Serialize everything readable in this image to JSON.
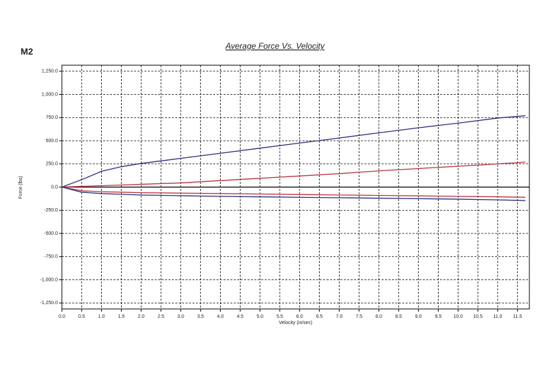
{
  "label": "M2",
  "chart_data": {
    "type": "line",
    "title": "Average Force Vs. Velocity",
    "x_label": "Velocity (in/sec)",
    "y_label": "Force (lbs)",
    "x": [
      0,
      0.5,
      1,
      1.5,
      2,
      3,
      4,
      5,
      6,
      7,
      8,
      9,
      10,
      11,
      11.7
    ],
    "series": [
      {
        "color": "#2b2d7a",
        "values": [
          0,
          80,
          170,
          220,
          255,
          310,
          365,
          420,
          475,
          530,
          585,
          640,
          690,
          745,
          770
        ]
      },
      {
        "color": "#b8323e",
        "values": [
          0,
          8,
          15,
          22,
          30,
          45,
          70,
          95,
          120,
          145,
          175,
          200,
          225,
          250,
          270
        ]
      },
      {
        "color": "#b8323e",
        "values": [
          0,
          -40,
          -50,
          -55,
          -60,
          -65,
          -70,
          -75,
          -80,
          -85,
          -90,
          -95,
          -100,
          -105,
          -110
        ]
      },
      {
        "color": "#2b2d7a",
        "values": [
          0,
          -55,
          -70,
          -78,
          -85,
          -93,
          -100,
          -105,
          -110,
          -115,
          -120,
          -125,
          -130,
          -138,
          -145
        ]
      }
    ],
    "xlim": [
      0,
      11.8
    ],
    "ylim": [
      -1315,
      1315
    ],
    "xticks": [
      {
        "value": 0,
        "label": "0.0"
      },
      {
        "value": 0.5,
        "label": "0.5"
      },
      {
        "value": 1,
        "label": "1.0"
      },
      {
        "value": 1.5,
        "label": "1.5"
      },
      {
        "value": 2,
        "label": "2.0"
      },
      {
        "value": 2.5,
        "label": "2.5"
      },
      {
        "value": 3,
        "label": "3.0"
      },
      {
        "value": 3.5,
        "label": "3.5"
      },
      {
        "value": 4,
        "label": "4.0"
      },
      {
        "value": 4.5,
        "label": "4.5"
      },
      {
        "value": 5,
        "label": "5.0"
      },
      {
        "value": 5.5,
        "label": "5.5"
      },
      {
        "value": 6,
        "label": "6.0"
      },
      {
        "value": 6.5,
        "label": "6.5"
      },
      {
        "value": 7,
        "label": "7.0"
      },
      {
        "value": 7.5,
        "label": "7.5"
      },
      {
        "value": 8,
        "label": "8.0"
      },
      {
        "value": 8.5,
        "label": "8.5"
      },
      {
        "value": 9,
        "label": "9.0"
      },
      {
        "value": 9.5,
        "label": "9.5"
      },
      {
        "value": 10,
        "label": "10.0"
      },
      {
        "value": 10.5,
        "label": "10.5"
      },
      {
        "value": 11,
        "label": "11.0"
      },
      {
        "value": 11.5,
        "label": "11.5"
      }
    ],
    "yticks": [
      {
        "value": -1250,
        "label": "-1,250.0"
      },
      {
        "value": -1000,
        "label": "-1,000.0"
      },
      {
        "value": -750,
        "label": "-750.0"
      },
      {
        "value": -500,
        "label": "-500.0"
      },
      {
        "value": -250,
        "label": "-250.0"
      },
      {
        "value": 0,
        "label": "0.0"
      },
      {
        "value": 250,
        "label": "250.0"
      },
      {
        "value": 500,
        "label": "500.0"
      },
      {
        "value": 750,
        "label": "750.0"
      },
      {
        "value": 1000,
        "label": "1,000.0"
      },
      {
        "value": 1250,
        "label": "1,250.0"
      }
    ],
    "grid": true
  }
}
